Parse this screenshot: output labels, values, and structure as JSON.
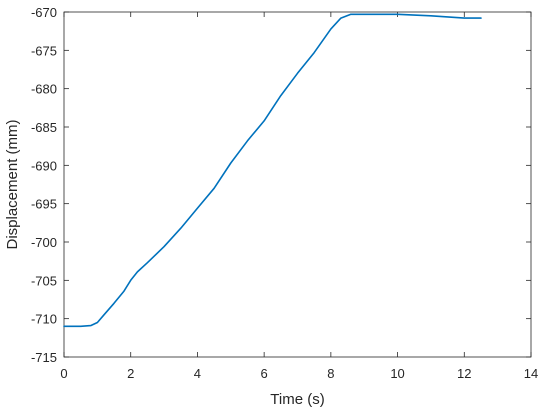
{
  "chart_data": {
    "type": "line",
    "title": "",
    "xlabel": "Time (s)",
    "ylabel": "Displacement (mm)",
    "xlim": [
      0,
      14
    ],
    "ylim": [
      -715,
      -670
    ],
    "xticks": [
      0,
      2,
      4,
      6,
      8,
      10,
      12,
      14
    ],
    "yticks": [
      -670,
      -675,
      -680,
      -685,
      -690,
      -695,
      -700,
      -705,
      -710,
      -715
    ],
    "grid": false,
    "box": true,
    "line_color": "#0072BD",
    "axis_color": "#262626",
    "series": [
      {
        "x": [
          0.0,
          0.5,
          0.8,
          1.0,
          1.2,
          1.5,
          1.8,
          2.0,
          2.2,
          2.5,
          3.0,
          3.5,
          4.0,
          4.5,
          5.0,
          5.5,
          6.0,
          6.5,
          7.0,
          7.5,
          8.0,
          8.3,
          8.6,
          8.8,
          9.0,
          10.0,
          11.0,
          12.0,
          12.5
        ],
        "y": [
          -711.0,
          -711.0,
          -710.9,
          -710.5,
          -709.5,
          -708.0,
          -706.4,
          -705.0,
          -703.9,
          -702.7,
          -700.6,
          -698.2,
          -695.6,
          -693.0,
          -689.7,
          -686.8,
          -684.2,
          -680.9,
          -678.0,
          -675.3,
          -672.2,
          -670.8,
          -670.3,
          -670.3,
          -670.3,
          -670.3,
          -670.5,
          -670.8,
          -670.8
        ]
      }
    ]
  }
}
